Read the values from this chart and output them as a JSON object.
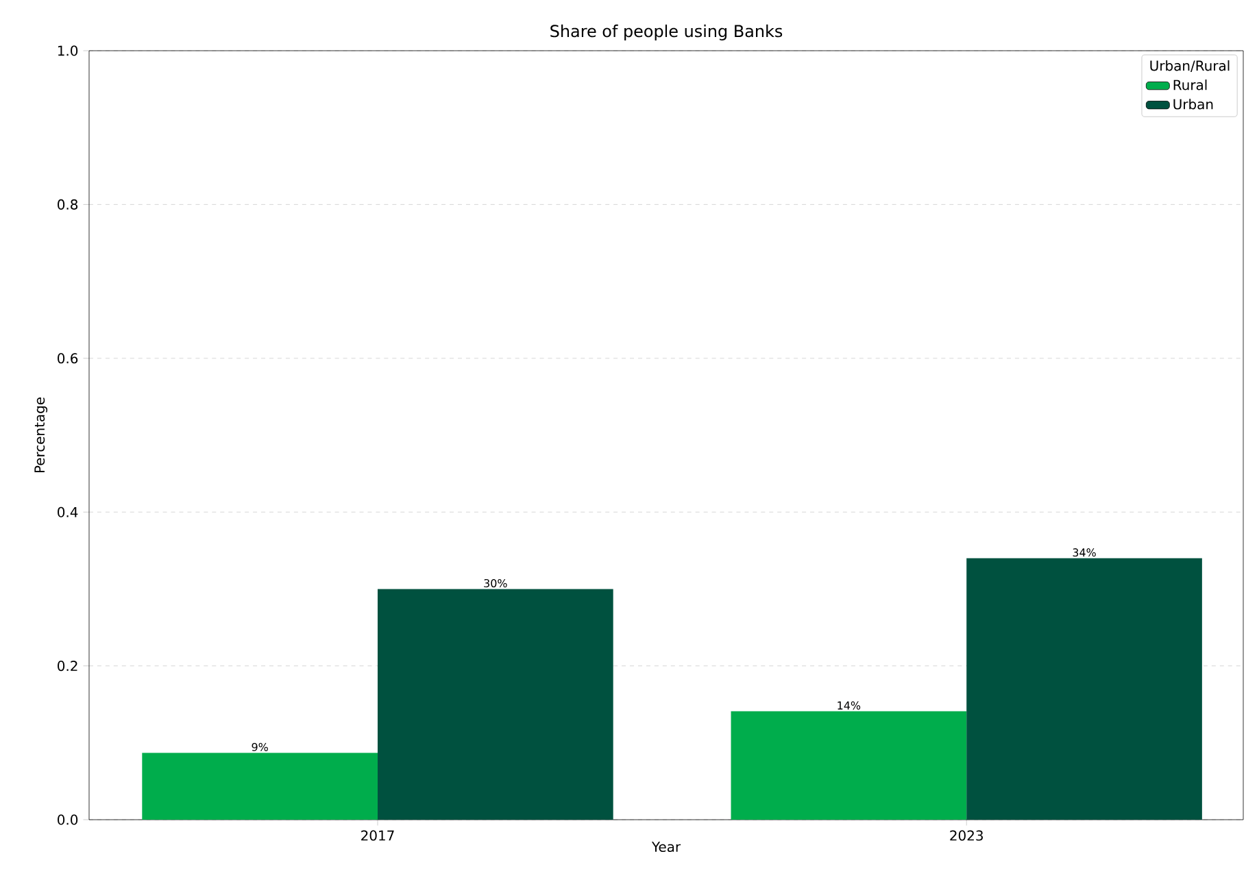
{
  "chart_data": {
    "type": "bar",
    "title": "Share of people using Banks",
    "xlabel": "Year",
    "ylabel": "Percentage",
    "legend_title": "Urban/Rural",
    "categories": [
      "2017",
      "2023"
    ],
    "series": [
      {
        "name": "Rural",
        "color": "#00ad4c",
        "values": [
          0.087,
          0.141
        ],
        "value_labels": [
          "9%",
          "14%"
        ]
      },
      {
        "name": "Urban",
        "color": "#00513f",
        "values": [
          0.3,
          0.34
        ],
        "value_labels": [
          "30%",
          "34%"
        ]
      }
    ],
    "ylim": [
      0,
      1
    ],
    "yticks": [
      {
        "value": 0,
        "label": "0.0"
      },
      {
        "value": 0.2,
        "label": "0.2"
      },
      {
        "value": 0.4,
        "label": "0.4"
      },
      {
        "value": 0.6,
        "label": "0.6"
      },
      {
        "value": 0.8,
        "label": "0.8"
      },
      {
        "value": 1,
        "label": "1.0"
      }
    ],
    "grid": "y",
    "legend": "top right"
  }
}
